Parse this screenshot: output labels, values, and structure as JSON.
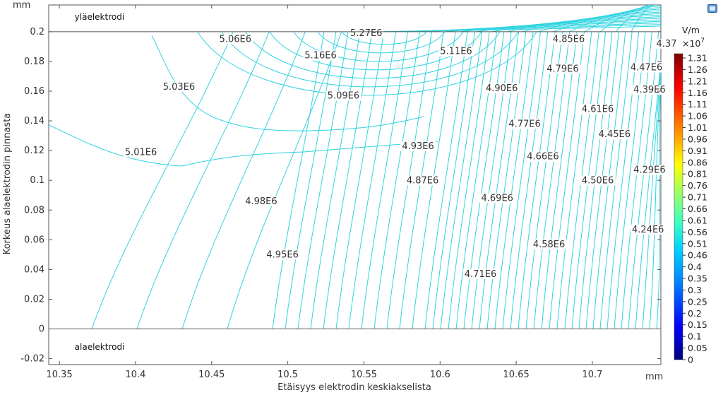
{
  "chart_data": {
    "type": "contour",
    "title": "",
    "xlabel": "Etäisyys elektrodin keskiakselista",
    "ylabel": "Korkeus alaelektrodin pinnasta",
    "x_unit": "mm",
    "y_unit": "mm",
    "xlim": [
      10.343,
      10.745
    ],
    "ylim": [
      -0.024,
      0.218
    ],
    "x_ticks": [
      10.35,
      10.4,
      10.45,
      10.5,
      10.55,
      10.6,
      10.65,
      10.7
    ],
    "x_tick_labels": [
      "10.35",
      "10.4",
      "10.45",
      "10.5",
      "10.55",
      "10.6",
      "10.65",
      "10.7"
    ],
    "y_ticks": [
      -0.02,
      0,
      0.02,
      0.04,
      0.06,
      0.08,
      0.1,
      0.12,
      0.14,
      0.16,
      0.18,
      0.2
    ],
    "y_tick_labels": [
      "-0.02",
      "0",
      "0.02",
      "0.04",
      "0.06",
      "0.08",
      "0.1",
      "0.12",
      "0.14",
      "0.16",
      "0.18",
      "0.2"
    ],
    "electrode_lines_y": [
      0.2,
      0
    ],
    "regions": [
      {
        "name": "upper",
        "label": "yläelektrodi",
        "x": 10.36,
        "y": 0.21
      },
      {
        "name": "lower",
        "label": "alaelektrodi",
        "x": 10.36,
        "y": -0.012
      }
    ],
    "contour_labels": [
      {
        "text": "5.06E6",
        "x": 10.455,
        "y": 0.193
      },
      {
        "text": "5.27E6",
        "x": 10.541,
        "y": 0.197
      },
      {
        "text": "4.85E6",
        "x": 10.674,
        "y": 0.193
      },
      {
        "text": "5.11E6",
        "x": 10.6,
        "y": 0.185
      },
      {
        "text": "5.16E6",
        "x": 10.511,
        "y": 0.182
      },
      {
        "text": "4.79E6",
        "x": 10.67,
        "y": 0.173
      },
      {
        "text": "4.47E6",
        "x": 10.725,
        "y": 0.174
      },
      {
        "text": "5.03E6",
        "x": 10.418,
        "y": 0.161
      },
      {
        "text": "5.09E6",
        "x": 10.526,
        "y": 0.155
      },
      {
        "text": "4.90E6",
        "x": 10.63,
        "y": 0.16
      },
      {
        "text": "4.39E6",
        "x": 10.727,
        "y": 0.159
      },
      {
        "text": "4.61E6",
        "x": 10.693,
        "y": 0.146
      },
      {
        "text": "4.77E6",
        "x": 10.645,
        "y": 0.136
      },
      {
        "text": "4.45E6",
        "x": 10.704,
        "y": 0.129
      },
      {
        "text": "4.93E6",
        "x": 10.575,
        "y": 0.121
      },
      {
        "text": "5.01E6",
        "x": 10.393,
        "y": 0.117
      },
      {
        "text": "4.66E6",
        "x": 10.657,
        "y": 0.114
      },
      {
        "text": "4.29E6",
        "x": 10.727,
        "y": 0.105
      },
      {
        "text": "4.87E6",
        "x": 10.578,
        "y": 0.098
      },
      {
        "text": "4.50E6",
        "x": 10.693,
        "y": 0.098
      },
      {
        "text": "4.69E6",
        "x": 10.627,
        "y": 0.086
      },
      {
        "text": "4.98E6",
        "x": 10.472,
        "y": 0.084
      },
      {
        "text": "4.24E6",
        "x": 10.726,
        "y": 0.065
      },
      {
        "text": "4.58E6",
        "x": 10.661,
        "y": 0.055
      },
      {
        "text": "4.95E6",
        "x": 10.486,
        "y": 0.048
      },
      {
        "text": "4.71E6",
        "x": 10.616,
        "y": 0.035
      },
      {
        "text": "4.37",
        "x": 10.742,
        "y": 0.19
      }
    ],
    "colorbar": {
      "unit": "V/m",
      "scale_label": "×10",
      "scale_exponent": "7",
      "min": 0,
      "max": 1.31,
      "ticks": [
        "1.31",
        "1.26",
        "1.21",
        "1.16",
        "1.11",
        "1.06",
        "1.01",
        "0.96",
        "0.91",
        "0.86",
        "0.81",
        "0.76",
        "0.71",
        "0.66",
        "0.61",
        "0.56",
        "0.51",
        "0.46",
        "0.4",
        "0.35",
        "0.3",
        "0.25",
        "0.2",
        "0.15",
        "0.1",
        "0.05",
        "0"
      ],
      "colors": [
        "#00007f",
        "#0000ff",
        "#0080ff",
        "#00d0ff",
        "#40ffc0",
        "#a0ff60",
        "#ffff00",
        "#ff8000",
        "#ff0000",
        "#7f0000"
      ]
    },
    "contour_color": "#2fd3e0"
  }
}
